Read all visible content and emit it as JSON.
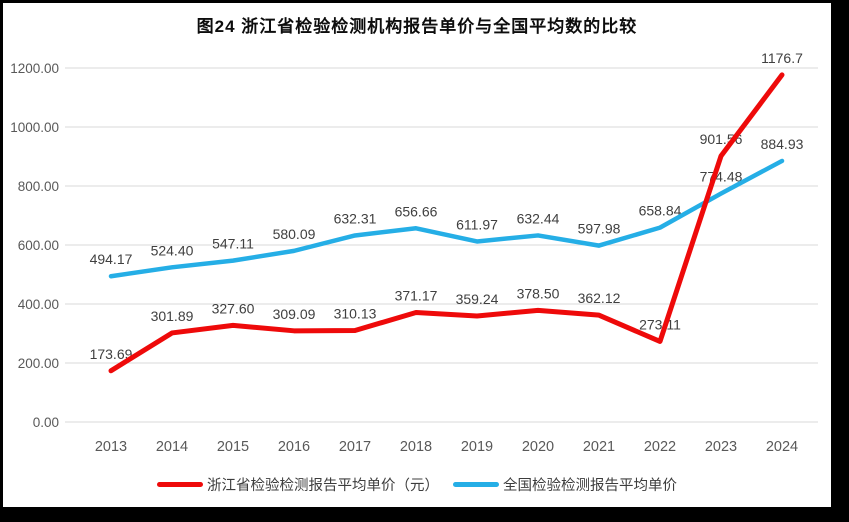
{
  "frame": {
    "border_color": "#000000",
    "background": "#ffffff"
  },
  "chart_data": {
    "type": "line",
    "title": "图24  浙江省检验检测机构报告单价与全国平均数的比较",
    "categories": [
      "2013",
      "2014",
      "2015",
      "2016",
      "2017",
      "2018",
      "2019",
      "2020",
      "2021",
      "2022",
      "2023",
      "2024"
    ],
    "series": [
      {
        "name": "浙江省检验检测报告平均单价（元）",
        "color": "#ee0a0a",
        "stroke_width": 5,
        "values": [
          173.69,
          301.89,
          327.6,
          309.09,
          310.13,
          371.17,
          359.24,
          378.5,
          362.12,
          273.11,
          901.56,
          1176.7
        ],
        "labels": [
          "173.69",
          "301.89",
          "327.60",
          "309.09",
          "310.13",
          "371.17",
          "359.24",
          "378.50",
          "362.12",
          "273.11",
          "901.56",
          "1176.7"
        ]
      },
      {
        "name": "全国检验检测报告平均单价",
        "color": "#25aee6",
        "stroke_width": 4.5,
        "values": [
          494.17,
          524.4,
          547.11,
          580.09,
          632.31,
          656.66,
          611.97,
          632.44,
          597.98,
          658.84,
          774.48,
          884.93
        ],
        "labels": [
          "494.17",
          "524.40",
          "547.11",
          "580.09",
          "632.31",
          "656.66",
          "611.97",
          "632.44",
          "597.98",
          "658.84",
          "774.48",
          "884.93"
        ]
      }
    ],
    "ylim": [
      0,
      1200
    ],
    "ytick_values": [
      0,
      200,
      400,
      600,
      800,
      1000,
      1200
    ],
    "ytick_labels": [
      "0.00",
      "200.00",
      "400.00",
      "600.00",
      "800.00",
      "1000.00",
      "1200.00"
    ],
    "grid": true,
    "legend_position": "bottom",
    "colors": {
      "grid": "#d9d9d9",
      "axis_text": "#595959",
      "label_text": "#404040",
      "title_text": "#0d0d0d"
    }
  }
}
